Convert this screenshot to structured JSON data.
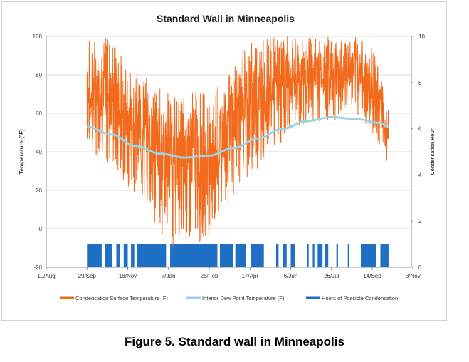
{
  "caption": "Figure 5. Standard wall in Minneapolis",
  "colors": {
    "surface": "#f26b1d",
    "dew": "#9bd3e6",
    "hours": "#1f6fc4",
    "grid": "#d9d9d9",
    "axis": "#8c8c8c",
    "text": "#333333"
  },
  "chart_data": {
    "type": "line",
    "title": "Standard Wall in Minneapolis",
    "ylabel": "Temperature (°F)",
    "y2label": "Condensation Hour",
    "xlabel": "",
    "ylim": [
      -20,
      100
    ],
    "y2lim": [
      0,
      10
    ],
    "yticks": [
      "-20",
      "0",
      "20",
      "40",
      "60",
      "80",
      "100"
    ],
    "y2ticks": [
      "0",
      "2",
      "4",
      "6",
      "8",
      "10"
    ],
    "xlim_days": [
      0,
      448
    ],
    "xticks": [
      "10/Aug",
      "29/Sep",
      "18/Nov",
      "7/Jan",
      "26/Feb",
      "17/Apr",
      "6/Jun",
      "26/Jul",
      "14/Sep",
      "3/Nov"
    ],
    "xtick_days": [
      0,
      50,
      100,
      150,
      200,
      250,
      300,
      350,
      400,
      450
    ],
    "legend": [
      "Condensation Surface Temperature (F)",
      "Interior Dew Point Temperature (F)",
      "Hours of Possible Condensation"
    ],
    "series": [
      {
        "name": "Condensation Surface Temperature (F)",
        "axis": "left",
        "day_range": [
          50,
          420
        ],
        "envelope_days": [
          50,
          60,
          80,
          100,
          120,
          140,
          160,
          180,
          200,
          220,
          240,
          260,
          280,
          300,
          320,
          340,
          360,
          380,
          400,
          410,
          420
        ],
        "low": [
          40,
          38,
          30,
          22,
          12,
          -5,
          -12,
          -10,
          -5,
          5,
          25,
          30,
          40,
          45,
          55,
          55,
          55,
          60,
          50,
          40,
          32
        ],
        "high": [
          100,
          100,
          100,
          85,
          80,
          75,
          70,
          72,
          70,
          78,
          95,
          100,
          100,
          100,
          100,
          100,
          100,
          100,
          95,
          80,
          62
        ]
      },
      {
        "name": "Interior Dew Point Temperature (F)",
        "axis": "left",
        "x_days": [
          50,
          80,
          110,
          140,
          170,
          200,
          230,
          260,
          290,
          320,
          350,
          380,
          410,
          420
        ],
        "values": [
          53,
          49,
          43,
          39,
          37,
          38,
          42,
          47,
          52,
          56,
          58,
          57,
          55,
          53
        ]
      },
      {
        "name": "Hours of Possible Condensation",
        "axis": "right",
        "value": 1,
        "active_ranges": [
          [
            50,
            68
          ],
          [
            72,
            81
          ],
          [
            86,
            90
          ],
          [
            95,
            100
          ],
          [
            104,
            108
          ],
          [
            111,
            147
          ],
          [
            152,
            210
          ],
          [
            213,
            229
          ],
          [
            232,
            245
          ],
          [
            251,
            267
          ],
          [
            282,
            285
          ],
          [
            290,
            295
          ],
          [
            300,
            305
          ],
          [
            320,
            322
          ],
          [
            327,
            329
          ],
          [
            333,
            339
          ],
          [
            342,
            346
          ],
          [
            356,
            358
          ],
          [
            370,
            372
          ],
          [
            386,
            405
          ],
          [
            410,
            420
          ]
        ]
      }
    ]
  }
}
